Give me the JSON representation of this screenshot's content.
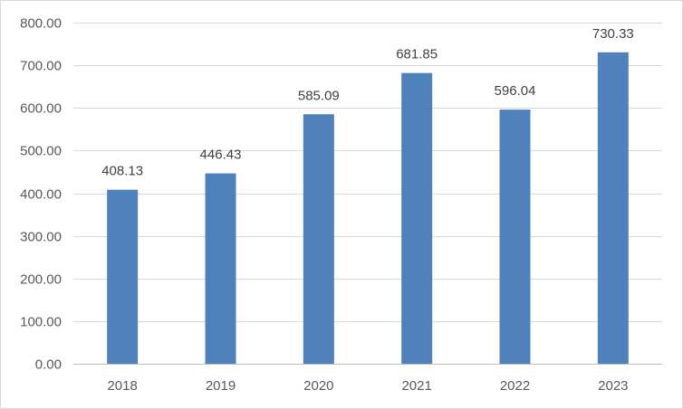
{
  "chart_data": {
    "type": "bar",
    "title": "",
    "xlabel": "",
    "ylabel": "",
    "categories": [
      "2018",
      "2019",
      "2020",
      "2021",
      "2022",
      "2023"
    ],
    "values": [
      408.13,
      446.43,
      585.09,
      681.85,
      596.04,
      730.33
    ],
    "data_labels": [
      "408.13",
      "446.43",
      "585.09",
      "681.85",
      "596.04",
      "730.33"
    ],
    "ylim": [
      0,
      800
    ],
    "yticks": [
      0,
      100,
      200,
      300,
      400,
      500,
      600,
      700,
      800
    ],
    "ytick_labels": [
      "0.00",
      "100.00",
      "200.00",
      "300.00",
      "400.00",
      "500.00",
      "600.00",
      "700.00",
      "800.00"
    ],
    "grid": true,
    "legend": "none",
    "colors": {
      "bar": "#4f81bd",
      "grid": "#d9d9d9",
      "axis": "#bfbfbf",
      "tick_text": "#595959",
      "label_text": "#404040",
      "border": "#d9d9d9"
    }
  }
}
